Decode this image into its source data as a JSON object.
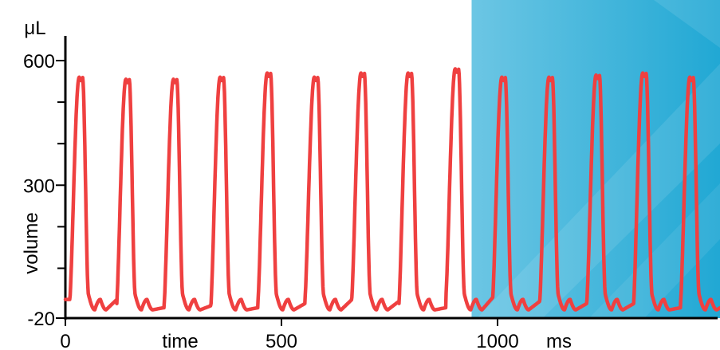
{
  "chart_data": {
    "type": "line",
    "xlabel": "time",
    "x_unit": "ms",
    "ylabel": "volume",
    "y_unit": "μL",
    "xlim": [
      0,
      1525
    ],
    "ylim": [
      -20,
      620
    ],
    "x_ticks": [
      "0",
      "500",
      "1000"
    ],
    "y_ticks": [
      "-20",
      "300",
      "600"
    ],
    "y_minor_ticks": [
      100,
      200,
      400,
      500
    ],
    "line_color": "#ef4040",
    "highlight": {
      "x_start": 940,
      "x_end": 1525,
      "color": "#29acd6"
    },
    "cycle_period_ms": 109,
    "cycles": [
      {
        "peak_x": 32,
        "peak": 560,
        "trough": 25
      },
      {
        "peak_x": 140,
        "peak": 555,
        "trough": 5
      },
      {
        "peak_x": 250,
        "peak": 555,
        "trough": 10
      },
      {
        "peak_x": 358,
        "peak": 560,
        "trough": 5
      },
      {
        "peak_x": 467,
        "peak": 570,
        "trough": 15
      },
      {
        "peak_x": 576,
        "peak": 560,
        "trough": 25
      },
      {
        "peak_x": 684,
        "peak": 570,
        "trough": 20
      },
      {
        "peak_x": 793,
        "peak": 570,
        "trough": 5
      },
      {
        "peak_x": 902,
        "peak": 580,
        "trough": 30
      },
      {
        "peak_x": 1010,
        "peak": 560,
        "trough": 20
      },
      {
        "peak_x": 1119,
        "peak": 560,
        "trough": 15
      },
      {
        "peak_x": 1228,
        "peak": 565,
        "trough": 15
      },
      {
        "peak_x": 1336,
        "peak": 570,
        "trough": 5
      },
      {
        "peak_x": 1445,
        "peak": 560,
        "trough": 15
      }
    ]
  }
}
